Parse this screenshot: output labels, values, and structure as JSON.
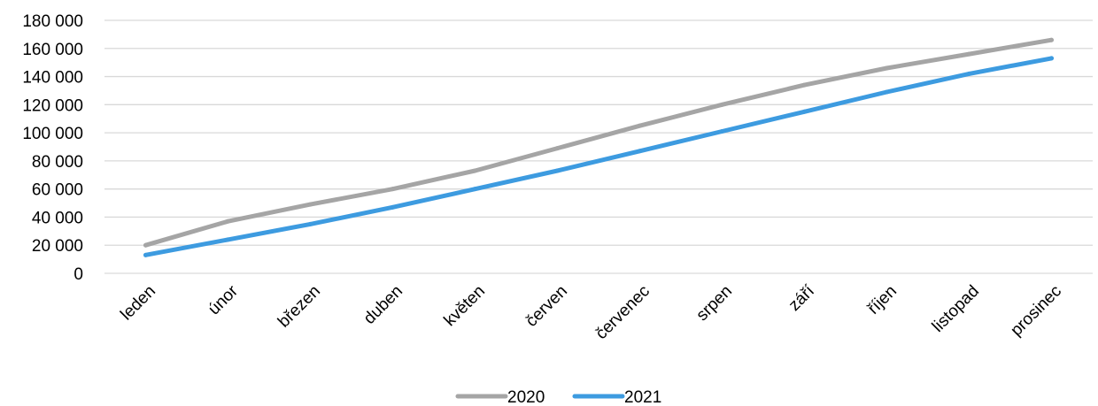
{
  "chart_data": {
    "type": "line",
    "title": "",
    "xlabel": "",
    "ylabel": "",
    "categories": [
      "leden",
      "únor",
      "březen",
      "duben",
      "květen",
      "červen",
      "červenec",
      "srpen",
      "září",
      "říjen",
      "listopad",
      "prosinec"
    ],
    "series": [
      {
        "name": "2020",
        "color": "#a5a5a5",
        "values": [
          20000,
          37000,
          49000,
          60000,
          73000,
          89000,
          105000,
          120000,
          134000,
          146000,
          156000,
          166000
        ]
      },
      {
        "name": "2021",
        "color": "#3d9be0",
        "values": [
          13000,
          24000,
          35000,
          47000,
          60000,
          73000,
          87000,
          101000,
          115000,
          129000,
          142000,
          153000
        ]
      }
    ],
    "ylim": [
      0,
      180000
    ],
    "yticks": [
      0,
      20000,
      40000,
      60000,
      80000,
      100000,
      120000,
      140000,
      160000,
      180000
    ],
    "ytick_labels": [
      "0",
      "20 000",
      "40 000",
      "60 000",
      "80 000",
      "100 000",
      "120 000",
      "140 000",
      "160 000",
      "180 000"
    ],
    "grid": true,
    "gridline_color": "#d9d9d9",
    "legend_position": "bottom"
  }
}
